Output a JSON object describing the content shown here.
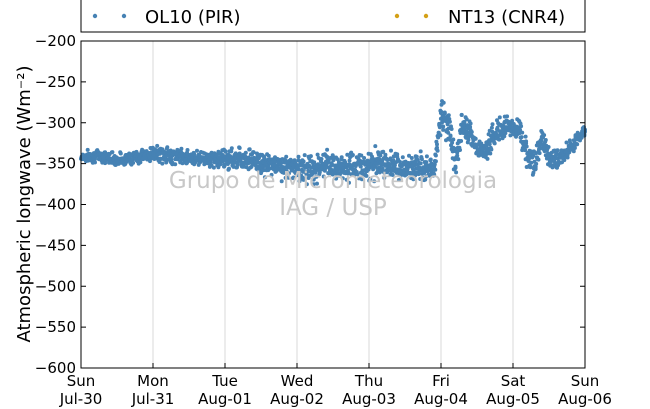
{
  "chart_data": {
    "type": "scatter",
    "ylabel": "Atmospheric longwave (Wm⁻²)",
    "ylim": [
      -600,
      -200
    ],
    "yticks": [
      -600,
      -550,
      -500,
      -450,
      -400,
      -350,
      -300,
      -250,
      -200
    ],
    "xlim": [
      0,
      7
    ],
    "xticks": [
      {
        "day": "Sun",
        "date": "Jul-30"
      },
      {
        "day": "Mon",
        "date": "Jul-31"
      },
      {
        "day": "Tue",
        "date": "Aug-01"
      },
      {
        "day": "Wed",
        "date": "Aug-02"
      },
      {
        "day": "Thu",
        "date": "Aug-03"
      },
      {
        "day": "Fri",
        "date": "Aug-04"
      },
      {
        "day": "Sat",
        "date": "Aug-05"
      },
      {
        "day": "Sun",
        "date": "Aug-06"
      }
    ],
    "grid": "vertical",
    "legend_position": "top",
    "watermark": [
      "Grupo de Micrometeorologia",
      "IAG / USP"
    ],
    "series": [
      {
        "name": "OL10 (PIR)",
        "color": "#4682b4",
        "x_unit": "days since Sun Jul-30",
        "x": [
          0.0,
          0.25,
          0.5,
          0.75,
          1.0,
          1.25,
          1.5,
          1.75,
          2.0,
          2.25,
          2.5,
          2.75,
          3.0,
          3.25,
          3.5,
          3.75,
          4.0,
          4.25,
          4.5,
          4.75,
          4.9,
          5.0,
          5.1,
          5.2,
          5.3,
          5.4,
          5.5,
          5.6,
          5.7,
          5.8,
          5.9,
          6.0,
          6.1,
          6.2,
          6.3,
          6.4,
          6.5,
          6.6,
          6.7,
          6.8,
          6.9,
          7.0
        ],
        "y": [
          -342,
          -340,
          -345,
          -343,
          -338,
          -340,
          -342,
          -344,
          -345,
          -342,
          -350,
          -352,
          -356,
          -355,
          -353,
          -354,
          -352,
          -350,
          -358,
          -350,
          -360,
          -290,
          -300,
          -350,
          -300,
          -310,
          -330,
          -335,
          -320,
          -310,
          -305,
          -305,
          -310,
          -340,
          -350,
          -320,
          -340,
          -345,
          -340,
          -330,
          -320,
          -310
        ],
        "spread": [
          5,
          6,
          6,
          6,
          7,
          8,
          6,
          7,
          10,
          12,
          10,
          12,
          12,
          15,
          12,
          12,
          14,
          12,
          12,
          14,
          10,
          15,
          18,
          15,
          15,
          15,
          12,
          12,
          12,
          10,
          10,
          10,
          12,
          12,
          12,
          12,
          10,
          10,
          8,
          8,
          6,
          5
        ]
      },
      {
        "name": "NT13 (CNR4)",
        "color": "#d4a017",
        "x": [],
        "y": []
      }
    ]
  }
}
